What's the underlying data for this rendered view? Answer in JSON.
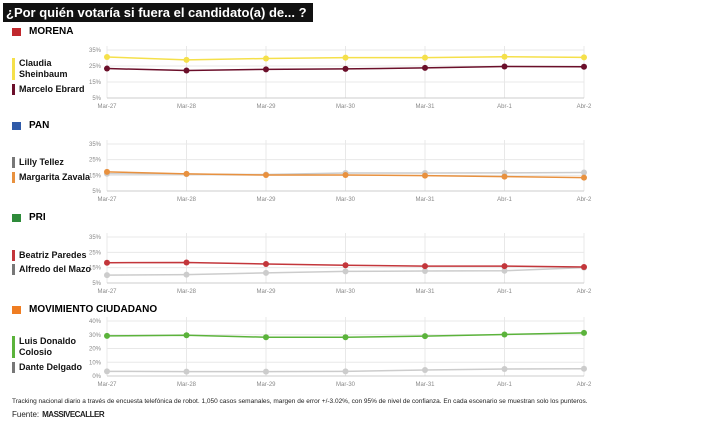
{
  "title": "¿Por quién votaría si fuera el candidato(a) de... ?",
  "chart_data": [
    {
      "type": "line",
      "party": "MORENA",
      "party_color": "#c0282d",
      "categories": [
        "Mar-27",
        "Mar-28",
        "Mar-29",
        "Mar-30",
        "Mar-31",
        "Abr-1",
        "Abr-2"
      ],
      "yticks": [
        "35%",
        "25%",
        "15%",
        "5%"
      ],
      "ylim": [
        5,
        35
      ],
      "grid": true,
      "series": [
        {
          "name": "Claudia Sheinbaum",
          "color": "#f5e04a",
          "values": [
            30.6,
            28.8,
            29.7,
            30.2,
            30.2,
            30.8,
            30.4
          ]
        },
        {
          "name": "Marcelo Ebrard",
          "color": "#6b0f2a",
          "values": [
            23.4,
            22.2,
            22.9,
            23.2,
            23.8,
            24.7,
            24.5
          ]
        }
      ]
    },
    {
      "type": "line",
      "party": "PAN",
      "party_color": "#2f5aa8",
      "categories": [
        "Mar-27",
        "Mar-28",
        "Mar-29",
        "Mar-30",
        "Mar-31",
        "Abr-1",
        "Abr-2"
      ],
      "yticks": [
        "35%",
        "25%",
        "15%",
        "5%"
      ],
      "ylim": [
        5,
        35
      ],
      "grid": true,
      "series": [
        {
          "name": "Lilly Tellez",
          "color": "#cccccc",
          "values": [
            16,
            15.8,
            15.5,
            16.5,
            16.5,
            16.6,
            16.8
          ]
        },
        {
          "name": "Margarita Zavala",
          "color": "#e8913f",
          "values": [
            17.2,
            15.9,
            15.2,
            15.2,
            14.8,
            14.2,
            13.5
          ]
        }
      ]
    },
    {
      "type": "line",
      "party": "PRI",
      "party_color": "#2e8b3a",
      "categories": [
        "Mar-27",
        "Mar-28",
        "Mar-29",
        "Mar-30",
        "Mar-31",
        "Abr-1",
        "Abr-2"
      ],
      "yticks": [
        "35%",
        "25%",
        "15%",
        "5%"
      ],
      "ylim": [
        5,
        35
      ],
      "grid": true,
      "series": [
        {
          "name": "Beatriz Paredes",
          "color": "#c3363b",
          "values": [
            18.2,
            18.4,
            17.4,
            16.6,
            16,
            16,
            15.4
          ]
        },
        {
          "name": "Alfredo del Mazo",
          "color": "#cccccc",
          "values": [
            10.1,
            10.5,
            11.6,
            12.6,
            12.8,
            13,
            15
          ]
        }
      ]
    },
    {
      "type": "line",
      "party": "MOVIMIENTO CIUDADANO",
      "party_color": "#ef7d22",
      "categories": [
        "Mar-27",
        "Mar-28",
        "Mar-29",
        "Mar-30",
        "Mar-31",
        "Abr-1",
        "Abr-2"
      ],
      "yticks": [
        "40%",
        "30%",
        "20%",
        "10%",
        "0%"
      ],
      "ylim": [
        0,
        40
      ],
      "grid": true,
      "series": [
        {
          "name": "Luis Donaldo Colosio",
          "color": "#5bb33b",
          "values": [
            29.2,
            29.6,
            28.2,
            28.2,
            29,
            30.2,
            31.4
          ]
        },
        {
          "name": "Dante Delgado",
          "color": "#cccccc",
          "values": [
            3.4,
            3.2,
            3.2,
            3.4,
            4.4,
            5.1,
            5.3
          ]
        }
      ]
    }
  ],
  "legend_order": [
    [
      0,
      1
    ],
    [
      0,
      1
    ],
    [
      0,
      1
    ],
    [
      0,
      1
    ]
  ],
  "footer": {
    "note": "Tracking nacional diario a través de encuesta telefónica de robot. 1,050 casos semanales, margen de error +/-3.02%, con 95% de nivel de confianza. En cada escenario se muestran solo los punteros.",
    "source_label": "Fuente:",
    "source_logo": "MASSIVE CALLER"
  }
}
